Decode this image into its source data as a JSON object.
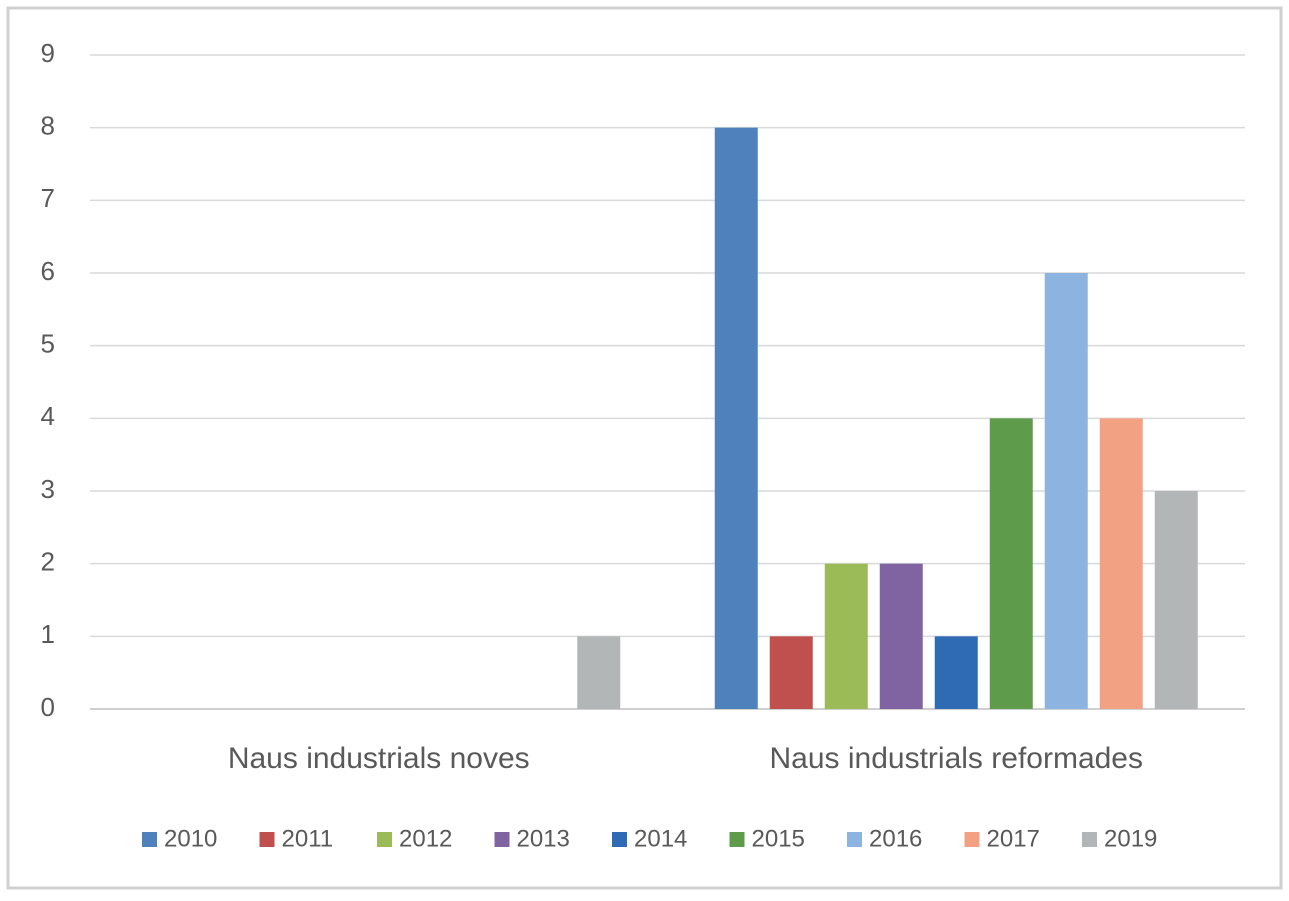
{
  "chart_data": {
    "type": "bar",
    "categories": [
      "Naus industrials noves",
      "Naus industrials reformades"
    ],
    "series": [
      {
        "name": "2010",
        "color": "#4f81bd",
        "values": [
          0,
          8
        ]
      },
      {
        "name": "2011",
        "color": "#c0504d",
        "values": [
          0,
          1
        ]
      },
      {
        "name": "2012",
        "color": "#9bbb59",
        "values": [
          0,
          2
        ]
      },
      {
        "name": "2013",
        "color": "#8064a2",
        "values": [
          0,
          2
        ]
      },
      {
        "name": "2014",
        "color": "#2f6ab4",
        "values": [
          0,
          1
        ]
      },
      {
        "name": "2015",
        "color": "#5e9c4b",
        "values": [
          0,
          4
        ]
      },
      {
        "name": "2016",
        "color": "#8db3e0",
        "values": [
          0,
          6
        ]
      },
      {
        "name": "2017",
        "color": "#f2a283",
        "values": [
          0,
          4
        ]
      },
      {
        "name": "2019",
        "color": "#b3b6b7",
        "values": [
          1,
          3
        ]
      }
    ],
    "ylim": [
      0,
      9
    ],
    "yticks": [
      0,
      1,
      2,
      3,
      4,
      5,
      6,
      7,
      8,
      9
    ],
    "grid": true,
    "legend": "bottom"
  }
}
